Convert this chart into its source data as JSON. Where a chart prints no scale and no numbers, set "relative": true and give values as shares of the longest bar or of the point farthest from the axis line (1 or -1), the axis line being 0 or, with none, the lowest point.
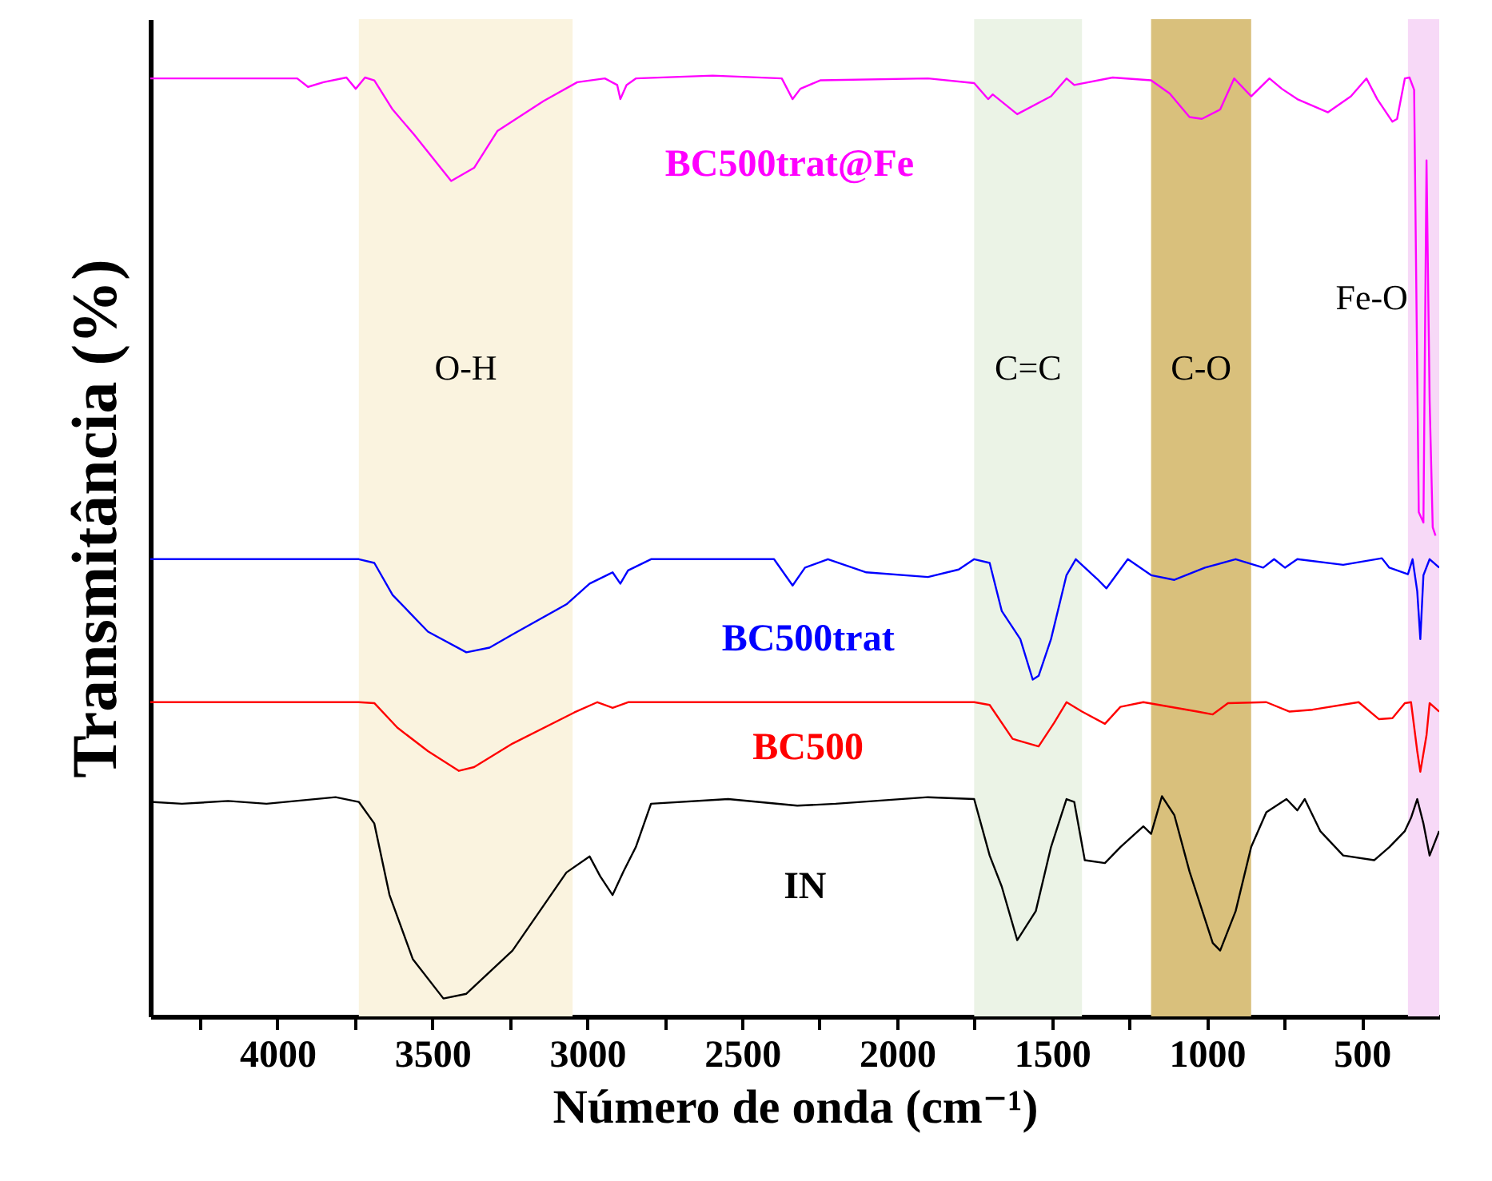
{
  "chart_data": {
    "type": "line",
    "relative": true,
    "xlabel": "Número de onda (cm⁻¹)",
    "ylabel": "Transmitância (%)",
    "xlim": [
      4410,
      250
    ],
    "xticks": [
      4000,
      3500,
      3000,
      2500,
      2000,
      1500,
      1000,
      500,
      {
        "value": 4250,
        "label": null
      },
      {
        "value": 3750,
        "label": null
      },
      {
        "value": 3250,
        "label": null
      },
      {
        "value": 2750,
        "label": null
      },
      {
        "value": 2250,
        "label": null
      },
      {
        "value": 1750,
        "label": null
      },
      {
        "value": 1250,
        "label": null
      },
      {
        "value": 750,
        "label": null
      }
    ],
    "grid": false,
    "bands": [
      {
        "axis": "x",
        "from": 3737,
        "to": 3047,
        "label": "O-H",
        "color": "#faf3df"
      },
      {
        "axis": "x",
        "from": 1751,
        "to": 1403,
        "label": "C=C",
        "color": "#ebf3e6"
      },
      {
        "axis": "x",
        "from": 1180,
        "to": 857,
        "label": "C-O",
        "color": "#d9c07c"
      },
      {
        "axis": "x",
        "from": 351,
        "to": 250,
        "label": "Fe-O",
        "color": "#f7d9f7"
      }
    ],
    "series": [
      {
        "name": "BC500trat@Fe",
        "color": "#ff00ff",
        "x": [
          4410,
          3936,
          3901,
          3851,
          3777,
          3747,
          3717,
          3687,
          3628,
          3558,
          3439,
          3365,
          3290,
          3141,
          3032,
          2943,
          2903,
          2893,
          2873,
          2843,
          2595,
          2372,
          2337,
          2312,
          2248,
          1900,
          1751,
          1706,
          1691,
          1612,
          1503,
          1453,
          1428,
          1304,
          1180,
          1120,
          1056,
          1016,
          957,
          912,
          857,
          798,
          758,
          708,
          609,
          535,
          485,
          450,
          401,
          386,
          361,
          346,
          331,
          316,
          301,
          291,
          281,
          271,
          262
        ],
        "values": [
          0.997,
          0.997,
          0.988,
          0.993,
          0.998,
          0.986,
          0.998,
          0.995,
          0.964,
          0.937,
          0.888,
          0.902,
          0.941,
          0.973,
          0.993,
          0.997,
          0.99,
          0.975,
          0.99,
          0.997,
          1,
          0.997,
          0.975,
          0.986,
          0.995,
          0.997,
          0.992,
          0.975,
          0.98,
          0.959,
          0.978,
          0.997,
          0.99,
          0.998,
          0.995,
          0.981,
          0.956,
          0.954,
          0.964,
          0.997,
          0.978,
          0.997,
          0.986,
          0.975,
          0.961,
          0.978,
          0.997,
          0.975,
          0.951,
          0.954,
          0.997,
          0.998,
          0.985,
          0.536,
          0.525,
          0.91,
          0.655,
          0.52,
          0.511
        ]
      },
      {
        "name": "BC500trat",
        "color": "#0000ff",
        "x": [
          4410,
          3737,
          3687,
          3628,
          3514,
          3390,
          3315,
          3241,
          3067,
          2992,
          2918,
          2893,
          2868,
          2794,
          2397,
          2337,
          2297,
          2223,
          2099,
          1900,
          1801,
          1751,
          1701,
          1662,
          1602,
          1562,
          1543,
          1503,
          1453,
          1423,
          1354,
          1324,
          1255,
          1180,
          1105,
          1006,
          907,
          818,
          783,
          748,
          708,
          560,
          435,
          411,
          351,
          336,
          321,
          311,
          301,
          281,
          250
        ],
        "values": [
          0.486,
          0.486,
          0.482,
          0.448,
          0.409,
          0.387,
          0.392,
          0.406,
          0.438,
          0.46,
          0.472,
          0.46,
          0.474,
          0.486,
          0.486,
          0.458,
          0.477,
          0.486,
          0.472,
          0.467,
          0.475,
          0.486,
          0.482,
          0.431,
          0.401,
          0.358,
          0.362,
          0.401,
          0.469,
          0.486,
          0.465,
          0.455,
          0.486,
          0.469,
          0.464,
          0.477,
          0.486,
          0.477,
          0.486,
          0.477,
          0.486,
          0.48,
          0.487,
          0.477,
          0.47,
          0.486,
          0.452,
          0.401,
          0.469,
          0.486,
          0.477
        ]
      },
      {
        "name": "BC500",
        "color": "#ff0000",
        "x": [
          4410,
          3737,
          3687,
          3613,
          3514,
          3414,
          3365,
          3241,
          3042,
          2967,
          2918,
          2868,
          1751,
          1701,
          1627,
          1543,
          1493,
          1453,
          1403,
          1329,
          1279,
          1205,
          1031,
          981,
          932,
          808,
          733,
          659,
          510,
          445,
          401,
          361,
          341,
          321,
          311,
          291,
          281,
          250
        ],
        "values": [
          0.334,
          0.334,
          0.333,
          0.307,
          0.282,
          0.261,
          0.265,
          0.29,
          0.323,
          0.334,
          0.328,
          0.334,
          0.334,
          0.331,
          0.295,
          0.287,
          0.312,
          0.334,
          0.324,
          0.311,
          0.329,
          0.334,
          0.324,
          0.321,
          0.333,
          0.334,
          0.324,
          0.326,
          0.334,
          0.316,
          0.317,
          0.333,
          0.334,
          0.282,
          0.26,
          0.299,
          0.333,
          0.324
        ]
      },
      {
        "name": "IN",
        "color": "#000000",
        "x": [
          4410,
          4308,
          4159,
          4035,
          3812,
          3737,
          3687,
          3638,
          3563,
          3464,
          3390,
          3241,
          3067,
          2992,
          2958,
          2918,
          2883,
          2843,
          2794,
          2545,
          2322,
          2198,
          1900,
          1751,
          1701,
          1662,
          1612,
          1552,
          1503,
          1453,
          1428,
          1394,
          1329,
          1279,
          1205,
          1180,
          1145,
          1105,
          1056,
          981,
          957,
          907,
          857,
          808,
          743,
          708,
          684,
          634,
          560,
          460,
          411,
          361,
          341,
          321,
          301,
          281,
          250
        ],
        "values": [
          0.228,
          0.226,
          0.229,
          0.226,
          0.233,
          0.228,
          0.205,
          0.129,
          0.061,
          0.019,
          0.024,
          0.07,
          0.153,
          0.17,
          0.149,
          0.129,
          0.154,
          0.18,
          0.226,
          0.231,
          0.224,
          0.226,
          0.233,
          0.231,
          0.171,
          0.138,
          0.081,
          0.112,
          0.18,
          0.231,
          0.228,
          0.166,
          0.163,
          0.18,
          0.202,
          0.194,
          0.234,
          0.214,
          0.154,
          0.078,
          0.07,
          0.112,
          0.18,
          0.217,
          0.231,
          0.219,
          0.231,
          0.197,
          0.171,
          0.166,
          0.18,
          0.197,
          0.211,
          0.231,
          0.205,
          0.171,
          0.197
        ]
      }
    ]
  }
}
